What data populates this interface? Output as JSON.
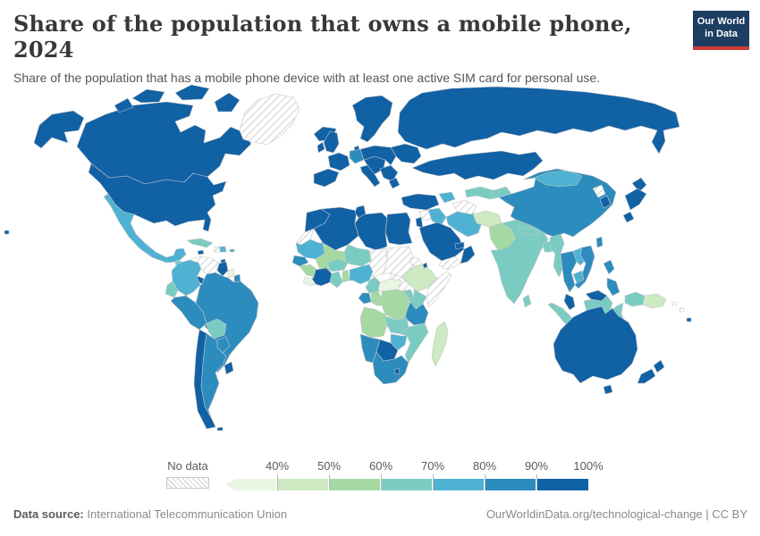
{
  "header": {
    "title": "Share of the population that owns a mobile phone, 2024",
    "subtitle": "Share of the population that has a mobile phone device with at least one active SIM card for personal use.",
    "logo": {
      "line1": "Our World",
      "line2": "in Data",
      "bg_color": "#1d3d63",
      "accent_color": "#cd3d34"
    }
  },
  "chart_data": {
    "type": "heatmap",
    "subtype": "choropleth-world-map",
    "title": "Share of the population that owns a mobile phone, 2024",
    "unit": "% of population",
    "legend_position": "bottom",
    "no_data_label": "No data",
    "tick_labels": [
      "40%",
      "50%",
      "60%",
      "70%",
      "80%",
      "90%",
      "100%"
    ],
    "bins": [
      {
        "key": "lt40",
        "label": "<40%",
        "color": "#e9f6e3"
      },
      {
        "key": "40-50",
        "label": "40%-50%",
        "color": "#cdeac2"
      },
      {
        "key": "50-60",
        "label": "50%-60%",
        "color": "#a4d9a4"
      },
      {
        "key": "60-70",
        "label": "60%-70%",
        "color": "#7accc3"
      },
      {
        "key": "70-80",
        "label": "70%-80%",
        "color": "#4fb2d3"
      },
      {
        "key": "80-90",
        "label": "80%-90%",
        "color": "#2d8cbe"
      },
      {
        "key": "90-100",
        "label": "90%-100%",
        "color": "#1161a5"
      }
    ],
    "no_data_pattern": {
      "stripe_color": "#c4c4c4",
      "background": "#ffffff"
    },
    "border_color": "#c6c6c6",
    "countries": {
      "alaska": "90-100",
      "canada": "90-100",
      "arctic-island-1": "90-100",
      "arctic-island-2": "90-100",
      "arctic-island-3": "90-100",
      "arctic-island-4": "90-100",
      "usa": "90-100",
      "hawaii": "90-100",
      "greenland": "no-data",
      "iceland": "90-100",
      "mexico": "70-80",
      "central-america": "60-70",
      "costa-rica": "90-100",
      "panama": "60-70",
      "cuba": "60-70",
      "jamaica": "90-100",
      "haiti": "no-data",
      "dominican-republic": "70-80",
      "puerto-rico": "70-80",
      "trinidad": "90-100",
      "colombia": "70-80",
      "venezuela": "no-data",
      "guyana": "90-100",
      "suriname": "lt40",
      "french-guiana": "80-90",
      "ecuador": "60-70",
      "peru": "80-90",
      "brazil": "80-90",
      "bolivia": "60-70",
      "paraguay": "80-90",
      "chile": "90-100",
      "argentina": "80-90",
      "uruguay": "90-100",
      "falklands": "90-100",
      "uk": "90-100",
      "ireland": "90-100",
      "scandinavia": "90-100",
      "denmark": "90-100",
      "iberia": "90-100",
      "france": "90-100",
      "germany": "80-90",
      "italy": "90-100",
      "central-europe": "90-100",
      "poland-baltics": "90-100",
      "balkans": "90-100",
      "greece": "90-100",
      "ukraine-belarus": "90-100",
      "russia": "90-100",
      "turkey": "90-100",
      "syria": "no-data",
      "israel-jordan": "90-100",
      "iraq": "70-80",
      "saudi-arabia": "90-100",
      "yemen": "no-data",
      "oman": "90-100",
      "uae-qatar": "90-100",
      "iran": "70-80",
      "caucasus": "70-80",
      "kazakhstan": "90-100",
      "turkmenistan": "no-data",
      "uzbekistan": "60-70",
      "kyrgyz-tajik": "60-70",
      "afghanistan": "40-50",
      "pakistan": "50-60",
      "india": "60-70",
      "nepal": "60-70",
      "bangladesh": "60-70",
      "sri-lanka": "60-70",
      "myanmar": "60-70",
      "thailand": "80-90",
      "laos": "70-80",
      "vietnam": "80-90",
      "cambodia": "70-80",
      "malaysia-peninsula": "90-100",
      "sumatra": "60-70",
      "java": "60-70",
      "borneo-malaysia": "90-100",
      "borneo-indonesia": "60-70",
      "sulawesi": "60-70",
      "philippines-north": "80-90",
      "philippines-south": "80-90",
      "taiwan": "80-90",
      "china": "80-90",
      "mongolia": "70-80",
      "north-korea": "no-data",
      "south-korea": "90-100",
      "japan-hokkaido": "90-100",
      "japan-honshu": "90-100",
      "japan-kyushu": "90-100",
      "morocco": "90-100",
      "western-sahara": "no-data",
      "algeria": "90-100",
      "tunisia": "90-100",
      "libya": "90-100",
      "egypt": "90-100",
      "mauritania": "70-80",
      "mali": "50-60",
      "niger": "60-70",
      "chad": "no-data",
      "sudan": "no-data",
      "eritrea": "no-data",
      "ethiopia": "40-50",
      "djibouti": "90-100",
      "somalia": "no-data",
      "senegal": "80-90",
      "guinea": "50-60",
      "sierra-liberia": "lt40",
      "cote-divoire": "90-100",
      "ghana": "60-70",
      "togo-benin": "50-60",
      "burkina-faso": "60-70",
      "nigeria": "70-80",
      "cameroon": "60-70",
      "central-african-republic": "lt40",
      "south-sudan": "no-data",
      "gabon": "80-90",
      "congo": "50-60",
      "drc": "50-60",
      "uganda": "60-70",
      "kenya": "60-70",
      "tanzania": "80-90",
      "angola": "50-60",
      "zambia": "60-70",
      "mozambique": "60-70",
      "zimbabwe": "70-80",
      "botswana": "90-100",
      "namibia": "80-90",
      "south-africa": "80-90",
      "lesotho": "90-100",
      "madagascar": "40-50",
      "west-papua": "60-70",
      "papua-new-guinea": "40-50",
      "solomon-1": "no-data",
      "solomon-2": "no-data",
      "fiji": "90-100",
      "australia": "90-100",
      "tasmania": "90-100",
      "nz-north": "90-100",
      "nz-south": "90-100"
    }
  },
  "legend": {
    "no_data_label": "No data",
    "tick_labels": [
      "40%",
      "50%",
      "60%",
      "70%",
      "80%",
      "90%",
      "100%"
    ]
  },
  "footer": {
    "source_label": "Data source:",
    "source_value": " International Telecommunication Union",
    "link": "OurWorldinData.org/technological-change",
    "separator": " | ",
    "license": "CC BY"
  }
}
